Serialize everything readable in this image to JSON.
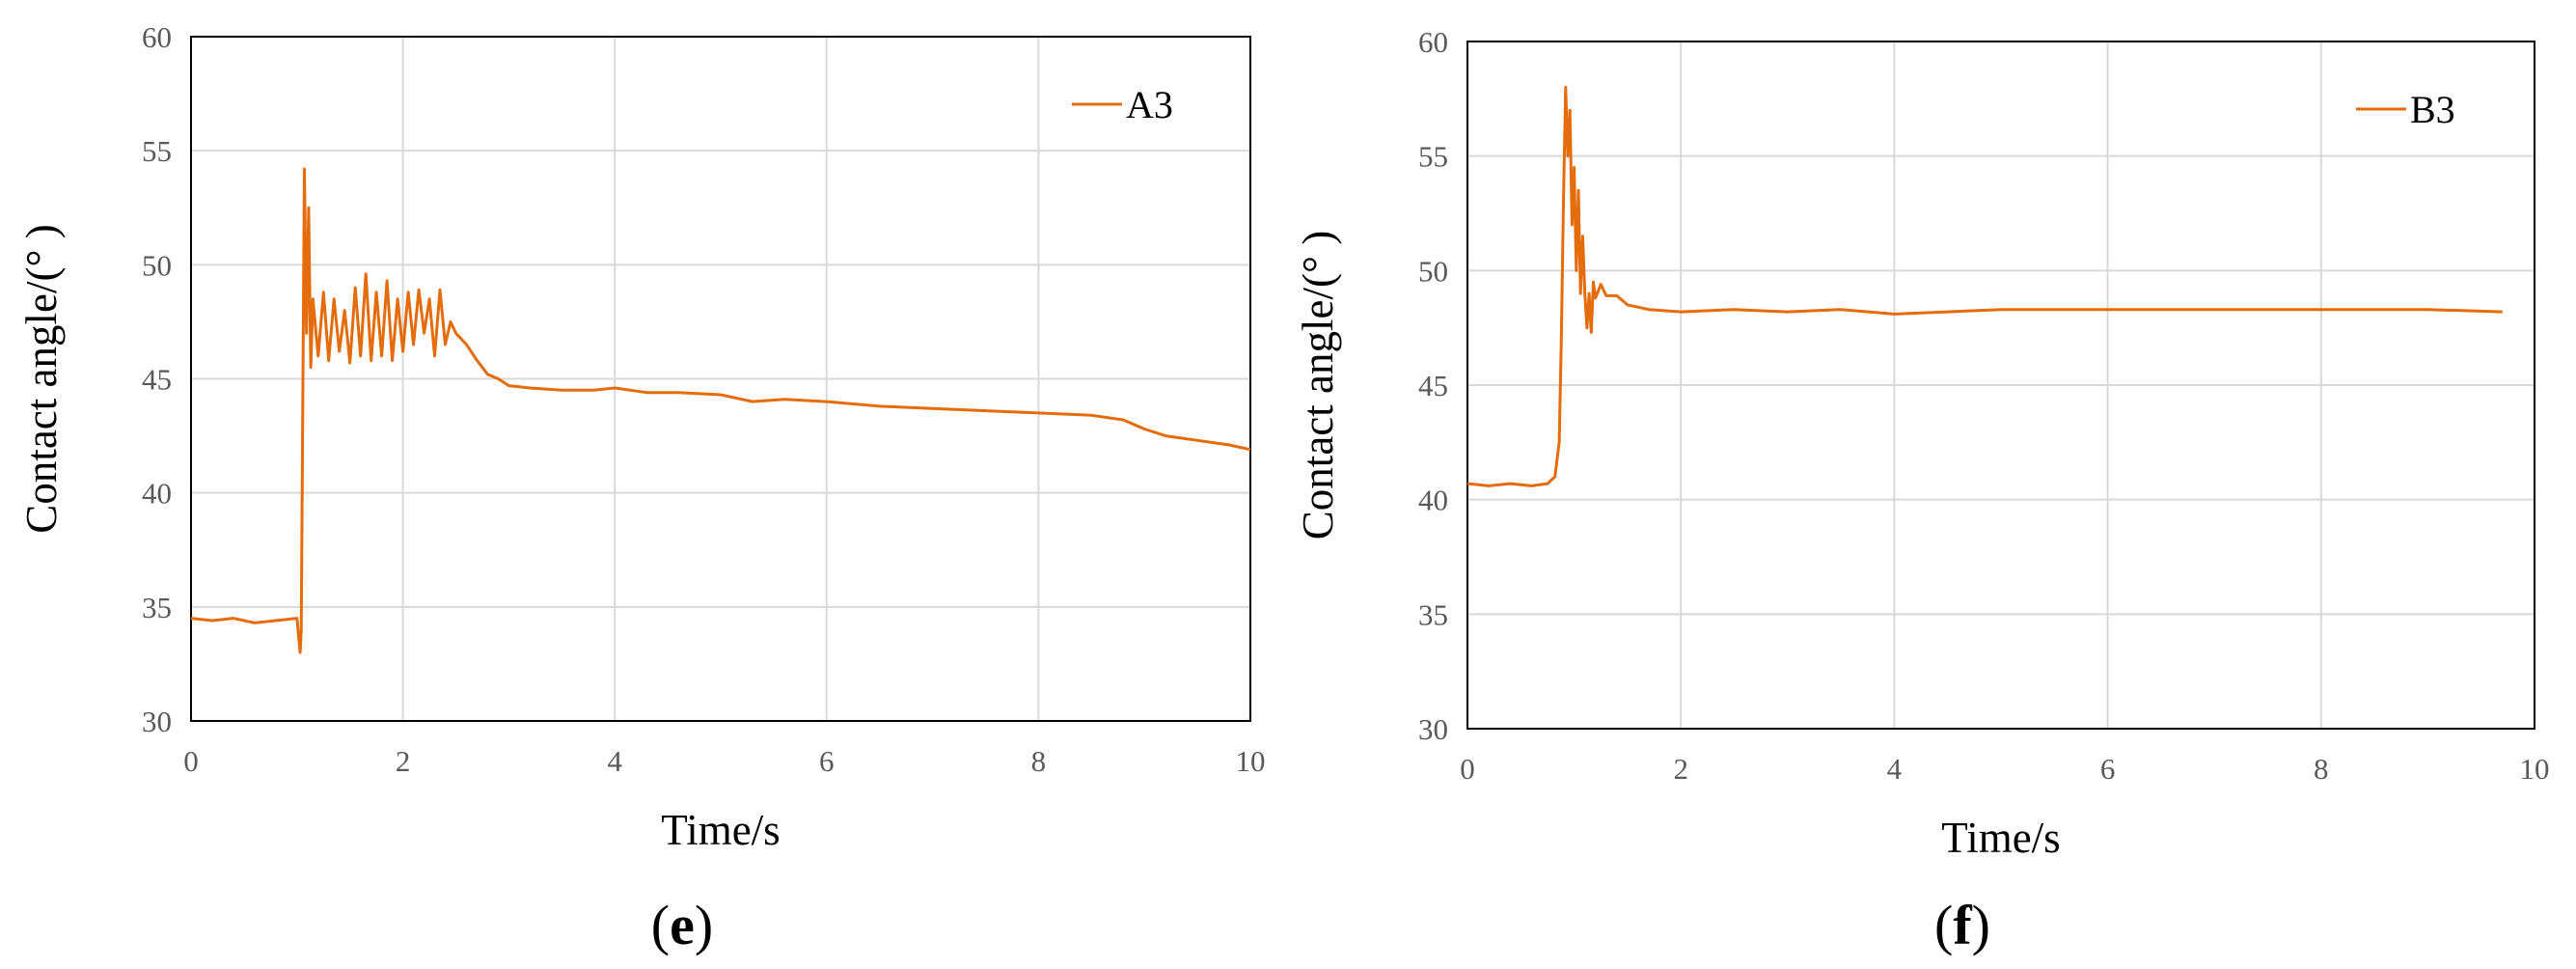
{
  "colors": {
    "series": "#E46C0A",
    "grid": "#d9d9d9",
    "axis": "#000000"
  },
  "chart_data": [
    {
      "type": "line",
      "panel_label": "e",
      "xlabel": "Time/s",
      "ylabel": "Contact angle/(°  )",
      "xlim": [
        0,
        10
      ],
      "ylim": [
        30,
        60
      ],
      "xticks": [
        "0",
        "2",
        "4",
        "6",
        "8",
        "10"
      ],
      "yticks": [
        "30",
        "35",
        "40",
        "45",
        "50",
        "55",
        "60"
      ],
      "grid": true,
      "legend_position": "top-right",
      "series": [
        {
          "name": "A3",
          "x": [
            0,
            0.2,
            0.4,
            0.6,
            0.8,
            1.0,
            1.03,
            1.04,
            1.05,
            1.07,
            1.09,
            1.11,
            1.13,
            1.15,
            1.2,
            1.25,
            1.3,
            1.35,
            1.4,
            1.45,
            1.5,
            1.55,
            1.6,
            1.65,
            1.7,
            1.75,
            1.8,
            1.85,
            1.9,
            1.95,
            2.0,
            2.05,
            2.1,
            2.15,
            2.2,
            2.25,
            2.3,
            2.35,
            2.4,
            2.45,
            2.5,
            2.6,
            2.7,
            2.8,
            2.9,
            3.0,
            3.2,
            3.5,
            3.8,
            4.0,
            4.3,
            4.6,
            5.0,
            5.3,
            5.6,
            6.0,
            6.5,
            7.0,
            7.5,
            8.0,
            8.5,
            8.8,
            9.0,
            9.2,
            9.5,
            9.8,
            10.0
          ],
          "y": [
            34.5,
            34.4,
            34.5,
            34.3,
            34.4,
            34.5,
            33.0,
            34.0,
            40.5,
            54.2,
            47.0,
            52.5,
            45.5,
            48.5,
            46.0,
            48.8,
            45.8,
            48.5,
            46.2,
            48.0,
            45.7,
            49.0,
            46.0,
            49.6,
            45.8,
            48.8,
            46.0,
            49.3,
            45.8,
            48.5,
            46.2,
            48.8,
            46.5,
            48.9,
            47.0,
            48.5,
            46.0,
            48.9,
            46.5,
            47.5,
            47.0,
            46.5,
            45.8,
            45.2,
            45.0,
            44.7,
            44.6,
            44.5,
            44.5,
            44.6,
            44.4,
            44.4,
            44.3,
            44.0,
            44.1,
            44.0,
            43.8,
            43.7,
            43.6,
            43.5,
            43.4,
            43.2,
            42.8,
            42.5,
            42.3,
            42.1,
            41.9
          ]
        }
      ]
    },
    {
      "type": "line",
      "panel_label": "f",
      "xlabel": "Time/s",
      "ylabel": "Contact angle/(°  )",
      "xlim": [
        0,
        10
      ],
      "ylim": [
        30,
        60
      ],
      "xticks": [
        "0",
        "2",
        "4",
        "6",
        "8",
        "10"
      ],
      "yticks": [
        "30",
        "35",
        "40",
        "45",
        "50",
        "55",
        "60"
      ],
      "grid": true,
      "legend_position": "top-right",
      "series": [
        {
          "name": "B3",
          "x": [
            0,
            0.2,
            0.4,
            0.6,
            0.75,
            0.82,
            0.86,
            0.88,
            0.9,
            0.92,
            0.94,
            0.96,
            0.98,
            1.0,
            1.02,
            1.04,
            1.06,
            1.08,
            1.1,
            1.12,
            1.14,
            1.16,
            1.18,
            1.2,
            1.25,
            1.3,
            1.4,
            1.5,
            1.7,
            2.0,
            2.5,
            3.0,
            3.5,
            4.0,
            4.5,
            5.0,
            6.0,
            7.0,
            8.0,
            9.0,
            9.7
          ],
          "y": [
            40.7,
            40.6,
            40.7,
            40.6,
            40.7,
            41.0,
            42.5,
            47.0,
            53.0,
            58.0,
            55.0,
            57.0,
            52.0,
            54.5,
            50.0,
            53.5,
            49.0,
            51.5,
            49.0,
            47.5,
            49.0,
            47.3,
            49.5,
            48.8,
            49.4,
            48.9,
            48.9,
            48.5,
            48.3,
            48.2,
            48.3,
            48.2,
            48.3,
            48.1,
            48.2,
            48.3,
            48.3,
            48.3,
            48.3,
            48.3,
            48.2
          ]
        }
      ]
    }
  ]
}
